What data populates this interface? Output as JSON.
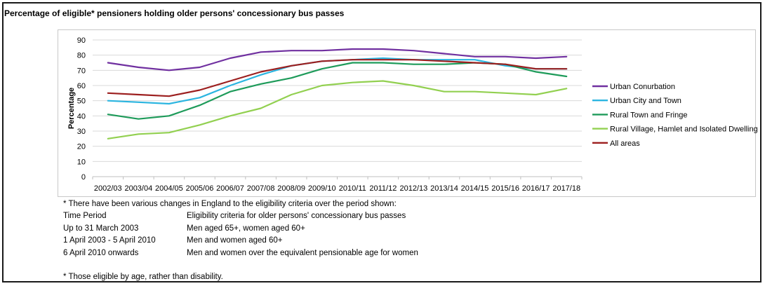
{
  "title": "Percentage of eligible* pensioners holding older persons' concessionary bus passes",
  "colors": {
    "Urban Conurbation": "#7030a0",
    "Urban City and Town": "#2bb5e0",
    "Rural Town and Fringe": "#1e9b5a",
    "Rural Village, Hamlet and Isolated Dwelling": "#92d050",
    "All areas": "#9c1f1f"
  },
  "chart_data": {
    "type": "line",
    "title": "",
    "xlabel": "",
    "ylabel": "Percentage",
    "ylim": [
      0,
      90
    ],
    "yticks": [
      0,
      10,
      20,
      30,
      40,
      50,
      60,
      70,
      80,
      90
    ],
    "grid": true,
    "legend_position": "right",
    "categories": [
      "2002/03",
      "2003/04",
      "2004/05",
      "2005/06",
      "2006/07",
      "2007/08",
      "2008/09",
      "2009/10",
      "2010/11",
      "2011/12",
      "2012/13",
      "2013/14",
      "2014/15",
      "2015/16",
      "2016/17",
      "2017/18"
    ],
    "series": [
      {
        "name": "Urban Conurbation",
        "values": [
          75,
          72,
          70,
          72,
          78,
          82,
          83,
          83,
          84,
          84,
          83,
          81,
          79,
          79,
          78,
          79
        ]
      },
      {
        "name": "Urban City and Town",
        "values": [
          50,
          49,
          48,
          52,
          60,
          67,
          73,
          76,
          77,
          78,
          77,
          77,
          77,
          73,
          71,
          71
        ]
      },
      {
        "name": "Rural Town and Fringe",
        "values": [
          41,
          38,
          40,
          47,
          56,
          61,
          65,
          71,
          75,
          75,
          74,
          74,
          75,
          74,
          69,
          66
        ]
      },
      {
        "name": "Rural Village, Hamlet and Isolated Dwelling",
        "values": [
          25,
          28,
          29,
          34,
          40,
          45,
          54,
          60,
          62,
          63,
          60,
          56,
          56,
          55,
          54,
          58
        ]
      },
      {
        "name": "All areas",
        "values": [
          55,
          54,
          53,
          57,
          63,
          69,
          73,
          76,
          77,
          77,
          77,
          76,
          75,
          74,
          71,
          71
        ]
      }
    ]
  },
  "notes": {
    "intro": "* There have been various changes in England to the eligibility criteria over the period shown:",
    "header": {
      "period": "Time Period",
      "criteria": "Eligibility criteria for older persons' concessionary bus passes"
    },
    "rows": [
      {
        "period": "Up to 31 March 2003",
        "criteria": "Men aged 65+, women aged 60+"
      },
      {
        "period": "1 April 2003 - 5 April 2010",
        "criteria": "Men and women aged 60+"
      },
      {
        "period": "6 April 2010 onwards",
        "criteria": "Men and women over the equivalent pensionable age for women"
      }
    ],
    "footnote": "* Those eligible by age, rather than disability."
  }
}
